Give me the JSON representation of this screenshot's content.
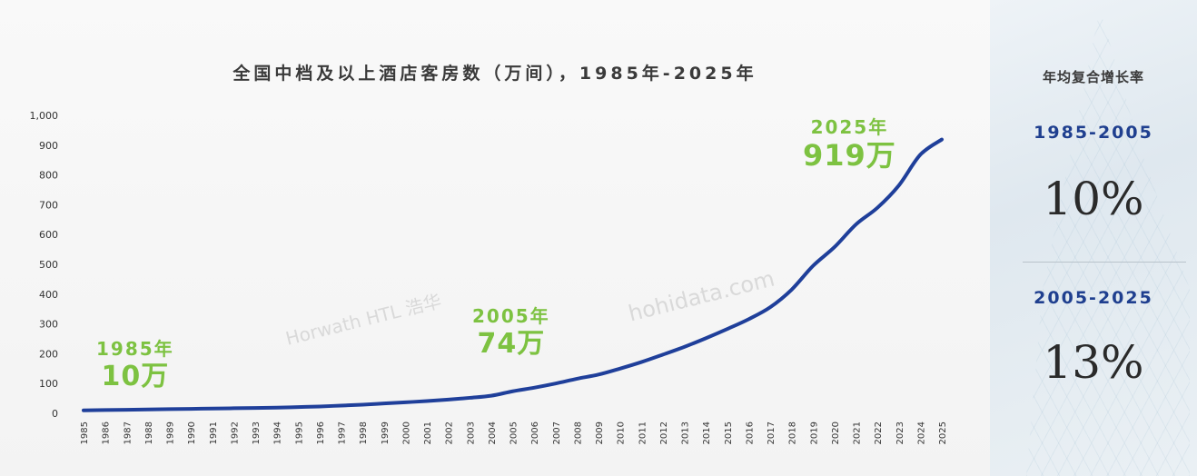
{
  "chart_data": {
    "type": "line",
    "title": "全国中档及以上酒店客房数（万间），1985年-2025年",
    "x": [
      1985,
      1986,
      1987,
      1988,
      1989,
      1990,
      1991,
      1992,
      1993,
      1994,
      1995,
      1996,
      1997,
      1998,
      1999,
      2000,
      2001,
      2002,
      2003,
      2004,
      2005,
      2006,
      2007,
      2008,
      2009,
      2010,
      2011,
      2012,
      2013,
      2014,
      2015,
      2016,
      2017,
      2018,
      2019,
      2020,
      2021,
      2022,
      2023,
      2024,
      2025
    ],
    "x_tick_labels": [
      "1985",
      "1986",
      "1987",
      "1988",
      "1989",
      "1990",
      "1991",
      "1992",
      "1993",
      "1994",
      "1995",
      "1996",
      "1997",
      "1998",
      "1999",
      "2000",
      "2001",
      "2002",
      "2003",
      "2004",
      "2005",
      "2006",
      "2007",
      "2008",
      "2009",
      "2010",
      "2011",
      "2012",
      "2013",
      "2014",
      "2015",
      "2016",
      "2017",
      "2018",
      "2019",
      "2020",
      "2021",
      "2022",
      "2023",
      "2024",
      "2025"
    ],
    "series": [
      {
        "values": [
          10,
          11,
          12,
          13,
          14,
          15,
          16,
          17,
          18,
          19,
          21,
          23,
          26,
          29,
          33,
          37,
          41,
          46,
          52,
          59,
          74,
          86,
          100,
          116,
          130,
          150,
          172,
          197,
          223,
          252,
          283,
          316,
          356,
          415,
          495,
          558,
          634,
          690,
          765,
          868,
          919
        ]
      }
    ],
    "y_ticks": [
      0,
      100,
      200,
      300,
      400,
      500,
      600,
      700,
      800,
      900,
      1000
    ],
    "y_tick_labels": [
      "0",
      "100",
      "200",
      "300",
      "400",
      "500",
      "600",
      "700",
      "800",
      "900",
      "1,000"
    ],
    "ylim": [
      0,
      1000
    ],
    "grid": false,
    "line_color": "#1f3f9a",
    "annotations": [
      {
        "year_label": "1985年",
        "value_label": "10万"
      },
      {
        "year_label": "2005年",
        "value_label": "74万"
      },
      {
        "year_label": "2025年",
        "value_label": "919万"
      }
    ],
    "annotation_color": "#7dc241"
  },
  "watermarks": [
    "Horwath HTL 浩华",
    "hohidata.com"
  ],
  "side_panel": {
    "title": "年均复合增长率",
    "periods": [
      {
        "range": "1985-2005",
        "rate": "10%"
      },
      {
        "range": "2005-2025",
        "rate": "13%"
      }
    ],
    "range_color": "#1f3f8f"
  }
}
